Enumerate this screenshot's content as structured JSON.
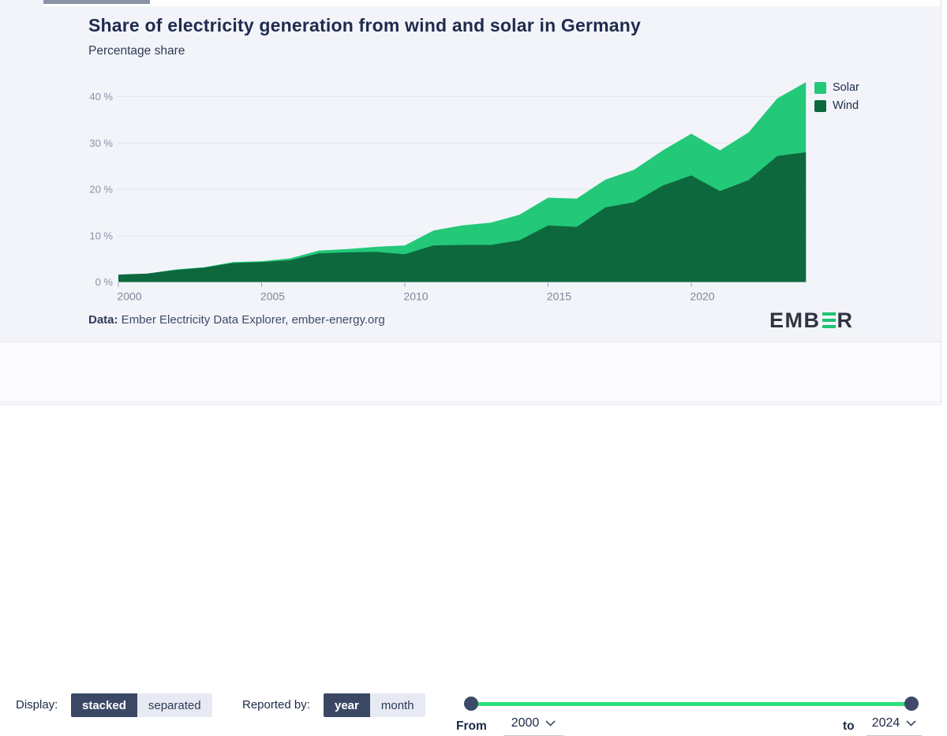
{
  "header": {
    "title": "Share of electricity generation from wind and solar in Germany",
    "subtitle": "Percentage share"
  },
  "legend": [
    {
      "label": "Solar",
      "color": "#23C878"
    },
    {
      "label": "Wind",
      "color": "#0E683E"
    }
  ],
  "source": {
    "prefix": "Data:",
    "text": " Ember Electricity Data Explorer, ember-energy.org"
  },
  "logo": {
    "pre": "EMB",
    "post": "R",
    "bar_color": "#1EC472"
  },
  "chart_data": {
    "type": "area",
    "stacked": true,
    "title": "Share of electricity generation from wind and solar in Germany",
    "xlabel": "",
    "ylabel": "Percentage share",
    "grid": true,
    "legend_position": "top-right",
    "ylim": [
      0,
      43.5
    ],
    "x": [
      2000,
      2001,
      2002,
      2003,
      2004,
      2005,
      2006,
      2007,
      2008,
      2009,
      2010,
      2011,
      2012,
      2013,
      2014,
      2015,
      2016,
      2017,
      2018,
      2019,
      2020,
      2021,
      2022,
      2023,
      2024
    ],
    "series": [
      {
        "name": "Wind",
        "color": "#0E683E",
        "values": [
          1.6,
          1.8,
          2.6,
          3.1,
          4.1,
          4.3,
          4.7,
          6.2,
          6.4,
          6.5,
          6.0,
          7.9,
          8.0,
          8.0,
          9.0,
          12.2,
          11.9,
          16.1,
          17.2,
          20.8,
          23.0,
          19.6,
          22.0,
          27.2,
          28.0
        ]
      },
      {
        "name": "Solar",
        "color": "#23C878",
        "values": [
          0.0,
          0.0,
          0.1,
          0.1,
          0.2,
          0.2,
          0.4,
          0.6,
          0.7,
          1.1,
          1.9,
          3.2,
          4.2,
          4.8,
          5.5,
          6.0,
          6.1,
          6.0,
          7.0,
          7.6,
          9.0,
          8.8,
          10.3,
          12.4,
          15.1
        ]
      }
    ],
    "x_ticks": [
      {
        "value": 2000,
        "label": "2000"
      },
      {
        "value": 2005,
        "label": "2005"
      },
      {
        "value": 2010,
        "label": "2010"
      },
      {
        "value": 2015,
        "label": "2015"
      },
      {
        "value": 2020,
        "label": "2020"
      }
    ],
    "y_ticks": [
      {
        "value": 0,
        "label": "0 %"
      },
      {
        "value": 10,
        "label": "10 %"
      },
      {
        "value": 20,
        "label": "20 %"
      },
      {
        "value": 30,
        "label": "30 %"
      },
      {
        "value": 40,
        "label": "40 %"
      }
    ],
    "axis_color": "#8A92A6",
    "grid_color": "#E2E5EC",
    "tick_color": "#9BA3B5"
  },
  "footer": {
    "display": {
      "label": "Display:",
      "options": [
        {
          "label": "stacked",
          "selected": true
        },
        {
          "label": "separated",
          "selected": false
        }
      ]
    },
    "reported_by": {
      "label": "Reported by:",
      "options": [
        {
          "label": "year",
          "selected": true
        },
        {
          "label": "month",
          "selected": false
        }
      ]
    },
    "range": {
      "from_label": "From",
      "from_value": "2000",
      "to_label": "to",
      "to_value": "2024",
      "slider_color": "#2EDE7D",
      "handle_color": "#3D4A68"
    }
  }
}
